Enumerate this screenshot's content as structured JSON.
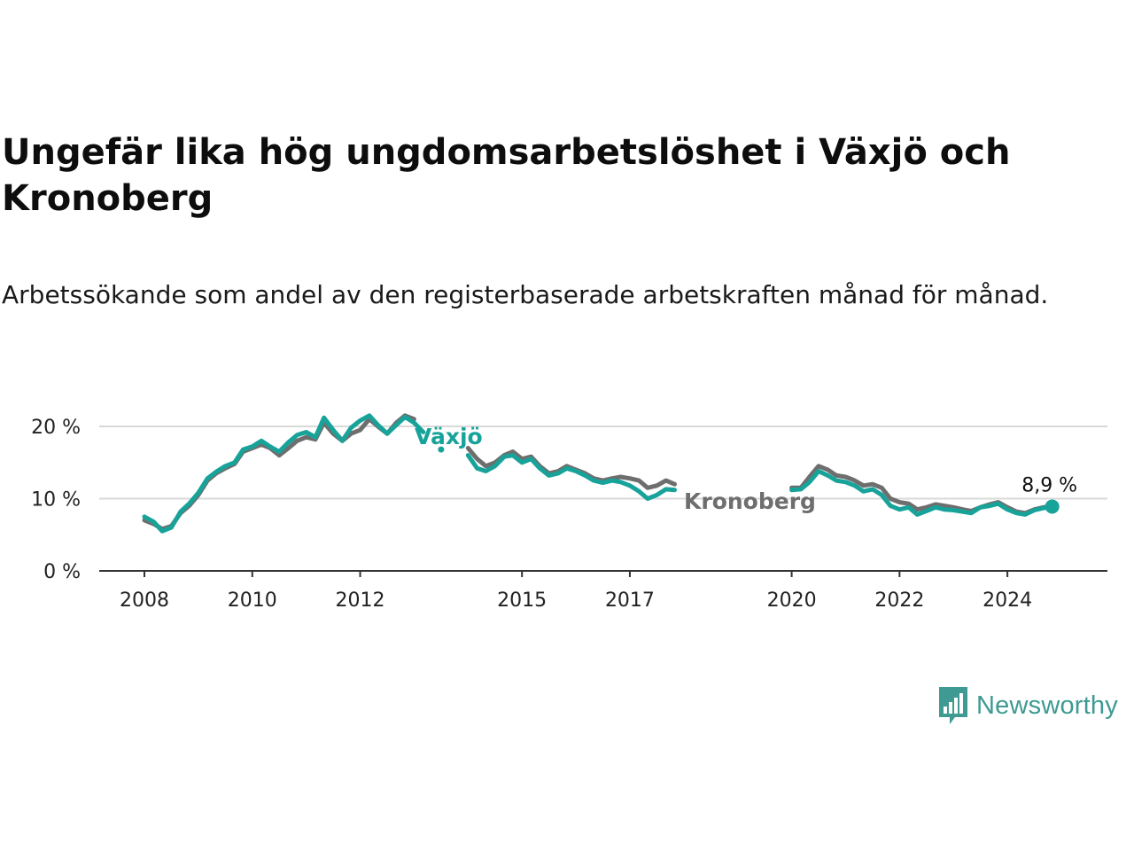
{
  "header": {
    "title": "Ungefär lika hög ungdomsarbetslöshet i Växjö och Kronoberg",
    "subtitle": "Arbetssökande som andel av den registerbaserade arbetskraften månad för månad."
  },
  "brand": {
    "name": "Newsworthy",
    "icon": "newsworthy-logo-icon",
    "color": "#3e9a92"
  },
  "chart_data": {
    "type": "line",
    "title": "Ungefär lika hög ungdomsarbetslöshet i Växjö och Kronoberg",
    "subtitle": "Arbetssökande som andel av den registerbaserade arbetskraften månad för månad.",
    "xlabel": "",
    "ylabel": "",
    "xlim": [
      2008,
      2025
    ],
    "ylim": [
      0,
      20
    ],
    "x_ticks": [
      {
        "value": 2008,
        "label": "2008"
      },
      {
        "value": 2010,
        "label": "2010"
      },
      {
        "value": 2012,
        "label": "2012"
      },
      {
        "value": 2015,
        "label": "2015"
      },
      {
        "value": 2017,
        "label": "2017"
      },
      {
        "value": 2020,
        "label": "2020"
      },
      {
        "value": 2022,
        "label": "2022"
      },
      {
        "value": 2024,
        "label": "2024"
      }
    ],
    "y_ticks": [
      {
        "value": 0,
        "label": "0 %"
      },
      {
        "value": 10,
        "label": "10 %"
      },
      {
        "value": 20,
        "label": "20 %"
      }
    ],
    "grid": true,
    "legend": "direct labels",
    "series": [
      {
        "name": "Kronoberg",
        "color": "#6e6e6e",
        "segments": [
          [
            [
              2008.0,
              7.0
            ],
            [
              2008.17,
              6.5
            ],
            [
              2008.33,
              5.8
            ],
            [
              2008.5,
              6.2
            ],
            [
              2008.67,
              8.0
            ],
            [
              2008.83,
              9.0
            ],
            [
              2009.0,
              10.5
            ],
            [
              2009.17,
              12.5
            ],
            [
              2009.33,
              13.5
            ],
            [
              2009.5,
              14.2
            ],
            [
              2009.67,
              14.8
            ],
            [
              2009.83,
              16.5
            ],
            [
              2010.0,
              17.0
            ],
            [
              2010.17,
              17.5
            ],
            [
              2010.33,
              17.0
            ],
            [
              2010.5,
              16.0
            ],
            [
              2010.67,
              17.0
            ],
            [
              2010.83,
              18.0
            ],
            [
              2011.0,
              18.5
            ],
            [
              2011.17,
              18.2
            ],
            [
              2011.33,
              20.5
            ],
            [
              2011.5,
              19.0
            ],
            [
              2011.67,
              18.0
            ],
            [
              2011.83,
              19.0
            ],
            [
              2012.0,
              19.5
            ],
            [
              2012.17,
              21.0
            ],
            [
              2012.33,
              20.0
            ],
            [
              2012.5,
              19.0
            ],
            [
              2012.67,
              20.5
            ],
            [
              2012.83,
              21.5
            ],
            [
              2013.0,
              21.0
            ]
          ],
          [
            [
              2014.0,
              17.0
            ],
            [
              2014.17,
              15.5
            ],
            [
              2014.33,
              14.5
            ],
            [
              2014.5,
              15.0
            ],
            [
              2014.67,
              16.0
            ],
            [
              2014.83,
              16.5
            ],
            [
              2015.0,
              15.5
            ],
            [
              2015.17,
              15.8
            ],
            [
              2015.33,
              14.5
            ],
            [
              2015.5,
              13.5
            ],
            [
              2015.67,
              13.8
            ],
            [
              2015.83,
              14.5
            ],
            [
              2016.0,
              14.0
            ],
            [
              2016.17,
              13.5
            ],
            [
              2016.33,
              12.8
            ],
            [
              2016.5,
              12.5
            ],
            [
              2016.67,
              12.8
            ],
            [
              2016.83,
              13.0
            ],
            [
              2017.0,
              12.8
            ],
            [
              2017.17,
              12.5
            ],
            [
              2017.33,
              11.5
            ],
            [
              2017.5,
              11.8
            ],
            [
              2017.67,
              12.5
            ],
            [
              2017.83,
              12.0
            ]
          ],
          [
            [
              2020.0,
              11.5
            ],
            [
              2020.17,
              11.5
            ],
            [
              2020.33,
              13.0
            ],
            [
              2020.5,
              14.5
            ],
            [
              2020.67,
              14.0
            ],
            [
              2020.83,
              13.2
            ],
            [
              2021.0,
              13.0
            ],
            [
              2021.17,
              12.5
            ],
            [
              2021.33,
              11.8
            ],
            [
              2021.5,
              12.0
            ],
            [
              2021.67,
              11.5
            ],
            [
              2021.83,
              10.0
            ],
            [
              2022.0,
              9.5
            ],
            [
              2022.17,
              9.3
            ],
            [
              2022.33,
              8.5
            ],
            [
              2022.5,
              8.8
            ],
            [
              2022.67,
              9.2
            ],
            [
              2022.83,
              9.0
            ],
            [
              2023.0,
              8.8
            ],
            [
              2023.17,
              8.5
            ],
            [
              2023.33,
              8.3
            ],
            [
              2023.5,
              8.8
            ],
            [
              2023.67,
              9.2
            ],
            [
              2023.83,
              9.5
            ],
            [
              2024.0,
              8.8
            ],
            [
              2024.17,
              8.2
            ],
            [
              2024.33,
              8.0
            ],
            [
              2024.5,
              8.5
            ],
            [
              2024.67,
              8.8
            ],
            [
              2024.83,
              8.9
            ]
          ]
        ]
      },
      {
        "name": "Växjö",
        "color": "#17a39a",
        "segments": [
          [
            [
              2008.0,
              7.5
            ],
            [
              2008.17,
              6.8
            ],
            [
              2008.33,
              5.5
            ],
            [
              2008.5,
              6.0
            ],
            [
              2008.67,
              8.2
            ],
            [
              2008.83,
              9.3
            ],
            [
              2009.0,
              10.8
            ],
            [
              2009.17,
              12.8
            ],
            [
              2009.33,
              13.7
            ],
            [
              2009.5,
              14.5
            ],
            [
              2009.67,
              15.0
            ],
            [
              2009.83,
              16.8
            ],
            [
              2010.0,
              17.2
            ],
            [
              2010.17,
              18.0
            ],
            [
              2010.33,
              17.2
            ],
            [
              2010.5,
              16.5
            ],
            [
              2010.67,
              17.8
            ],
            [
              2010.83,
              18.8
            ],
            [
              2011.0,
              19.2
            ],
            [
              2011.17,
              18.5
            ],
            [
              2011.33,
              21.2
            ],
            [
              2011.5,
              19.5
            ],
            [
              2011.67,
              18.0
            ],
            [
              2011.83,
              19.8
            ],
            [
              2012.0,
              20.8
            ],
            [
              2012.17,
              21.5
            ],
            [
              2012.33,
              20.2
            ],
            [
              2012.5,
              19.0
            ],
            [
              2012.67,
              20.2
            ],
            [
              2012.83,
              21.3
            ],
            [
              2013.0,
              20.5
            ],
            [
              2013.17,
              19.2
            ]
          ],
          [
            [
              2013.5,
              16.8
            ]
          ],
          [
            [
              2014.0,
              16.0
            ],
            [
              2014.17,
              14.2
            ],
            [
              2014.33,
              13.8
            ],
            [
              2014.5,
              14.5
            ],
            [
              2014.67,
              15.8
            ],
            [
              2014.83,
              16.0
            ],
            [
              2015.0,
              15.0
            ],
            [
              2015.17,
              15.5
            ],
            [
              2015.33,
              14.2
            ],
            [
              2015.5,
              13.2
            ],
            [
              2015.67,
              13.5
            ],
            [
              2015.83,
              14.2
            ],
            [
              2016.0,
              13.8
            ],
            [
              2016.17,
              13.2
            ],
            [
              2016.33,
              12.5
            ],
            [
              2016.5,
              12.2
            ],
            [
              2016.67,
              12.5
            ],
            [
              2016.83,
              12.3
            ],
            [
              2017.0,
              11.8
            ],
            [
              2017.17,
              11.0
            ],
            [
              2017.33,
              10.0
            ],
            [
              2017.5,
              10.5
            ],
            [
              2017.67,
              11.3
            ],
            [
              2017.83,
              11.2
            ]
          ],
          [
            [
              2020.0,
              11.2
            ],
            [
              2020.17,
              11.3
            ],
            [
              2020.33,
              12.3
            ],
            [
              2020.5,
              13.8
            ],
            [
              2020.67,
              13.2
            ],
            [
              2020.83,
              12.5
            ],
            [
              2021.0,
              12.3
            ],
            [
              2021.17,
              11.8
            ],
            [
              2021.33,
              11.0
            ],
            [
              2021.5,
              11.3
            ],
            [
              2021.67,
              10.5
            ],
            [
              2021.83,
              9.0
            ],
            [
              2022.0,
              8.5
            ],
            [
              2022.17,
              8.8
            ],
            [
              2022.33,
              7.8
            ],
            [
              2022.5,
              8.3
            ],
            [
              2022.67,
              8.8
            ],
            [
              2022.83,
              8.5
            ],
            [
              2023.0,
              8.4
            ],
            [
              2023.17,
              8.2
            ],
            [
              2023.33,
              8.0
            ],
            [
              2023.5,
              8.8
            ],
            [
              2023.67,
              9.0
            ],
            [
              2023.83,
              9.3
            ],
            [
              2024.0,
              8.5
            ],
            [
              2024.17,
              8.0
            ],
            [
              2024.33,
              7.8
            ],
            [
              2024.5,
              8.4
            ],
            [
              2024.67,
              8.7
            ],
            [
              2024.83,
              8.9
            ]
          ]
        ]
      }
    ],
    "annotations": [
      {
        "series": "Växjö",
        "text": "8,9 %",
        "x": 2024.9,
        "y": 8.9
      }
    ]
  }
}
